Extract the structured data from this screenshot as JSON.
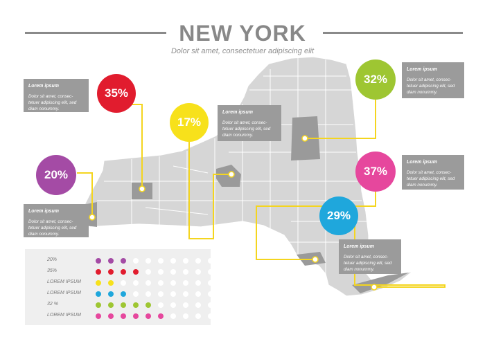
{
  "header": {
    "title": "NEW YORK",
    "subtitle": "Dolor sit amet, consectetuer adipiscing elit"
  },
  "colors": {
    "purple": "#a44ba5",
    "red": "#e11c2e",
    "yellow": "#f7e11b",
    "green": "#9ec632",
    "pink": "#e6479d",
    "blue": "#1fa7dc",
    "connector": "#f4d51f",
    "map_fill": "#d6d6d6",
    "map_highlight": "#9a9a9a",
    "box_bg": "#9b9b9b",
    "dot_empty": "#ffffff"
  },
  "markers": [
    {
      "label": "35%",
      "color": "red"
    },
    {
      "label": "20%",
      "color": "purple"
    },
    {
      "label": "17%",
      "color": "yellow"
    },
    {
      "label": "32%",
      "color": "green"
    },
    {
      "label": "37%",
      "color": "pink"
    },
    {
      "label": "29%",
      "color": "blue"
    }
  ],
  "info_boxes": [
    {
      "title": "Lorem ipsum",
      "text": "Dolor sit amet, consec-tetuer adipiscing elit, sed diam nonummy."
    },
    {
      "title": "Lorem ipsum",
      "text": "Dolor sit amet, consec-tetuer adipiscing elit, sed diam nonummy."
    },
    {
      "title": "Lorem ipsum",
      "text": "Dolor sit amet, consec-tetuer adipiscing elit, sed diam nonummy."
    },
    {
      "title": "Lorem ipsum",
      "text": "Dolor sit amet, consec-tetuer adipiscing elit, sed diam nonummy."
    },
    {
      "title": "Lorem ipsum",
      "text": "Dolor sit amet, consec-tetuer adipiscing elit, sed diam nonummy."
    },
    {
      "title": "Lorem ipsum",
      "text": "Dolor sit amet, consec-tetuer adipiscing elit, sed diam nonummy."
    }
  ],
  "legend": {
    "rows": [
      {
        "label": "20%",
        "color": "purple",
        "filled": 3,
        "total": 10
      },
      {
        "label": "35%",
        "color": "red",
        "filled": 4,
        "total": 10
      },
      {
        "label": "LOREM IPSUM",
        "color": "yellow",
        "filled": 2,
        "total": 10
      },
      {
        "label": "LOREM IPSUM",
        "color": "blue",
        "filled": 3,
        "total": 10
      },
      {
        "label": "32 %",
        "color": "green",
        "filled": 5,
        "total": 10
      },
      {
        "label": "LOREM IPSUM",
        "color": "pink",
        "filled": 6,
        "total": 10
      }
    ]
  }
}
